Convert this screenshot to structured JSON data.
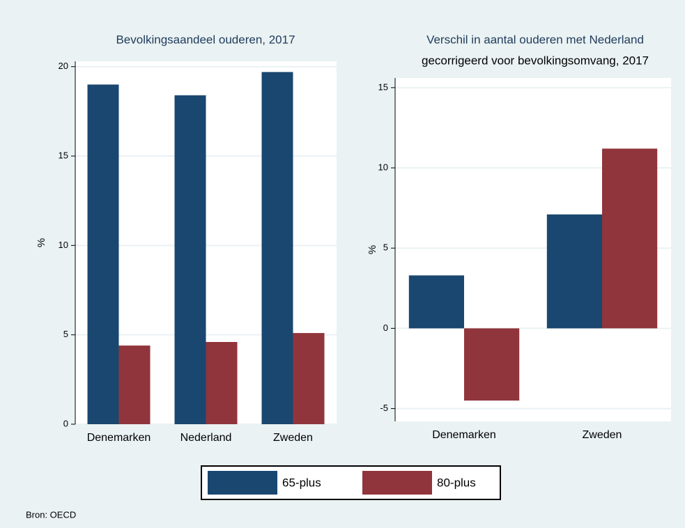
{
  "chart_data": [
    {
      "type": "bar",
      "title": "Bevolkingsaandeel ouderen, 2017",
      "ylabel": "%",
      "categories": [
        "Denemarken",
        "Nederland",
        "Zweden"
      ],
      "series": [
        {
          "name": "65-plus",
          "color": "#1a476f",
          "values": [
            19.0,
            18.4,
            19.7
          ]
        },
        {
          "name": "80-plus",
          "color": "#90353b",
          "values": [
            4.4,
            4.6,
            5.1
          ]
        }
      ],
      "ylim": [
        0,
        20.3
      ],
      "yticks": [
        0,
        5,
        10,
        15,
        20
      ],
      "grid": true
    },
    {
      "type": "bar",
      "title": "Verschil in aantal ouderen met Nederland",
      "subtitle": "gecorrigeerd voor bevolkingsomvang, 2017",
      "ylabel": "%",
      "categories": [
        "Denemarken",
        "Zweden"
      ],
      "series": [
        {
          "color": "#1a476f",
          "values": [
            3.3,
            7.1
          ]
        },
        {
          "color": "#90353b",
          "values": [
            -4.5,
            11.2
          ]
        }
      ],
      "ylim": [
        -5.8,
        15.6
      ],
      "yticks": [
        -5,
        0,
        5,
        10,
        15
      ],
      "grid": true
    }
  ],
  "source": "Bron: OECD"
}
